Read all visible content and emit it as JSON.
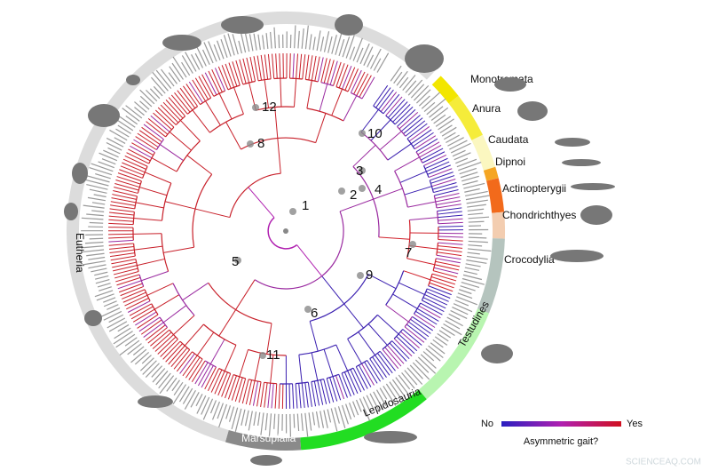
{
  "clades": [
    {
      "label": "Monotremata"
    },
    {
      "label": "Anura"
    },
    {
      "label": "Caudata"
    },
    {
      "label": "Dipnoi"
    },
    {
      "label": "Actinopterygii"
    },
    {
      "label": "Chondrichthyes"
    },
    {
      "label": "Crocodylia"
    },
    {
      "label": "Testudines"
    },
    {
      "label": "Lepidosauria"
    },
    {
      "label": "Marsupialia"
    },
    {
      "label": "Eutheria"
    }
  ],
  "nodes": [
    {
      "label": "1"
    },
    {
      "label": "2"
    },
    {
      "label": "3"
    },
    {
      "label": "4"
    },
    {
      "label": "5"
    },
    {
      "label": "6"
    },
    {
      "label": "7"
    },
    {
      "label": "8"
    },
    {
      "label": "9"
    },
    {
      "label": "10"
    },
    {
      "label": "11"
    },
    {
      "label": "12"
    }
  ],
  "legend": {
    "low": "No",
    "high": "Yes",
    "title": "Asymmetric gait?"
  },
  "watermark": "SCIENCEAQ.COM"
}
